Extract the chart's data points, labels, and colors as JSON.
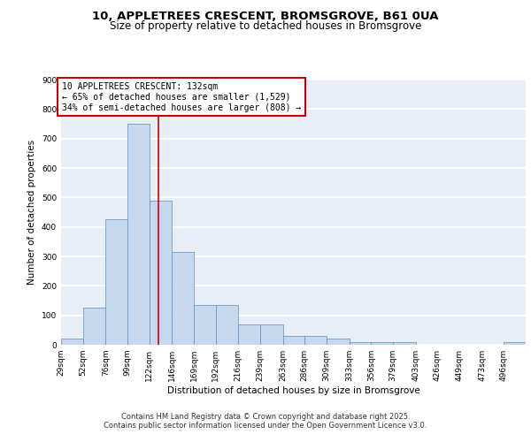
{
  "title1": "10, APPLETREES CRESCENT, BROMSGROVE, B61 0UA",
  "title2": "Size of property relative to detached houses in Bromsgrove",
  "xlabel": "Distribution of detached houses by size in Bromsgrove",
  "ylabel": "Number of detached properties",
  "bar_color": "#c5d8ee",
  "bar_edge_color": "#5a8fc0",
  "bin_labels": [
    "29sqm",
    "52sqm",
    "76sqm",
    "99sqm",
    "122sqm",
    "146sqm",
    "169sqm",
    "192sqm",
    "216sqm",
    "239sqm",
    "263sqm",
    "286sqm",
    "309sqm",
    "333sqm",
    "356sqm",
    "379sqm",
    "403sqm",
    "426sqm",
    "449sqm",
    "473sqm",
    "496sqm"
  ],
  "bin_edges": [
    29,
    52,
    76,
    99,
    122,
    146,
    169,
    192,
    216,
    239,
    263,
    286,
    309,
    333,
    356,
    379,
    403,
    426,
    449,
    473,
    496
  ],
  "bar_heights": [
    20,
    125,
    425,
    750,
    490,
    315,
    135,
    135,
    70,
    70,
    30,
    30,
    20,
    10,
    8,
    8,
    0,
    0,
    0,
    0,
    10
  ],
  "ylim": [
    0,
    900
  ],
  "yticks": [
    0,
    100,
    200,
    300,
    400,
    500,
    600,
    700,
    800,
    900
  ],
  "vline_x": 132,
  "vline_color": "#cc0000",
  "annotation_text": "10 APPLETREES CRESCENT: 132sqm\n← 65% of detached houses are smaller (1,529)\n34% of semi-detached houses are larger (808) →",
  "annotation_box_color": "#cc0000",
  "background_color": "#e8eef8",
  "grid_color": "#ffffff",
  "footer_line1": "Contains HM Land Registry data © Crown copyright and database right 2025.",
  "footer_line2": "Contains public sector information licensed under the Open Government Licence v3.0.",
  "title_fontsize": 9.5,
  "subtitle_fontsize": 8.5,
  "axis_label_fontsize": 7.5,
  "tick_fontsize": 6.5,
  "annotation_fontsize": 7.0,
  "footer_fontsize": 6.0
}
